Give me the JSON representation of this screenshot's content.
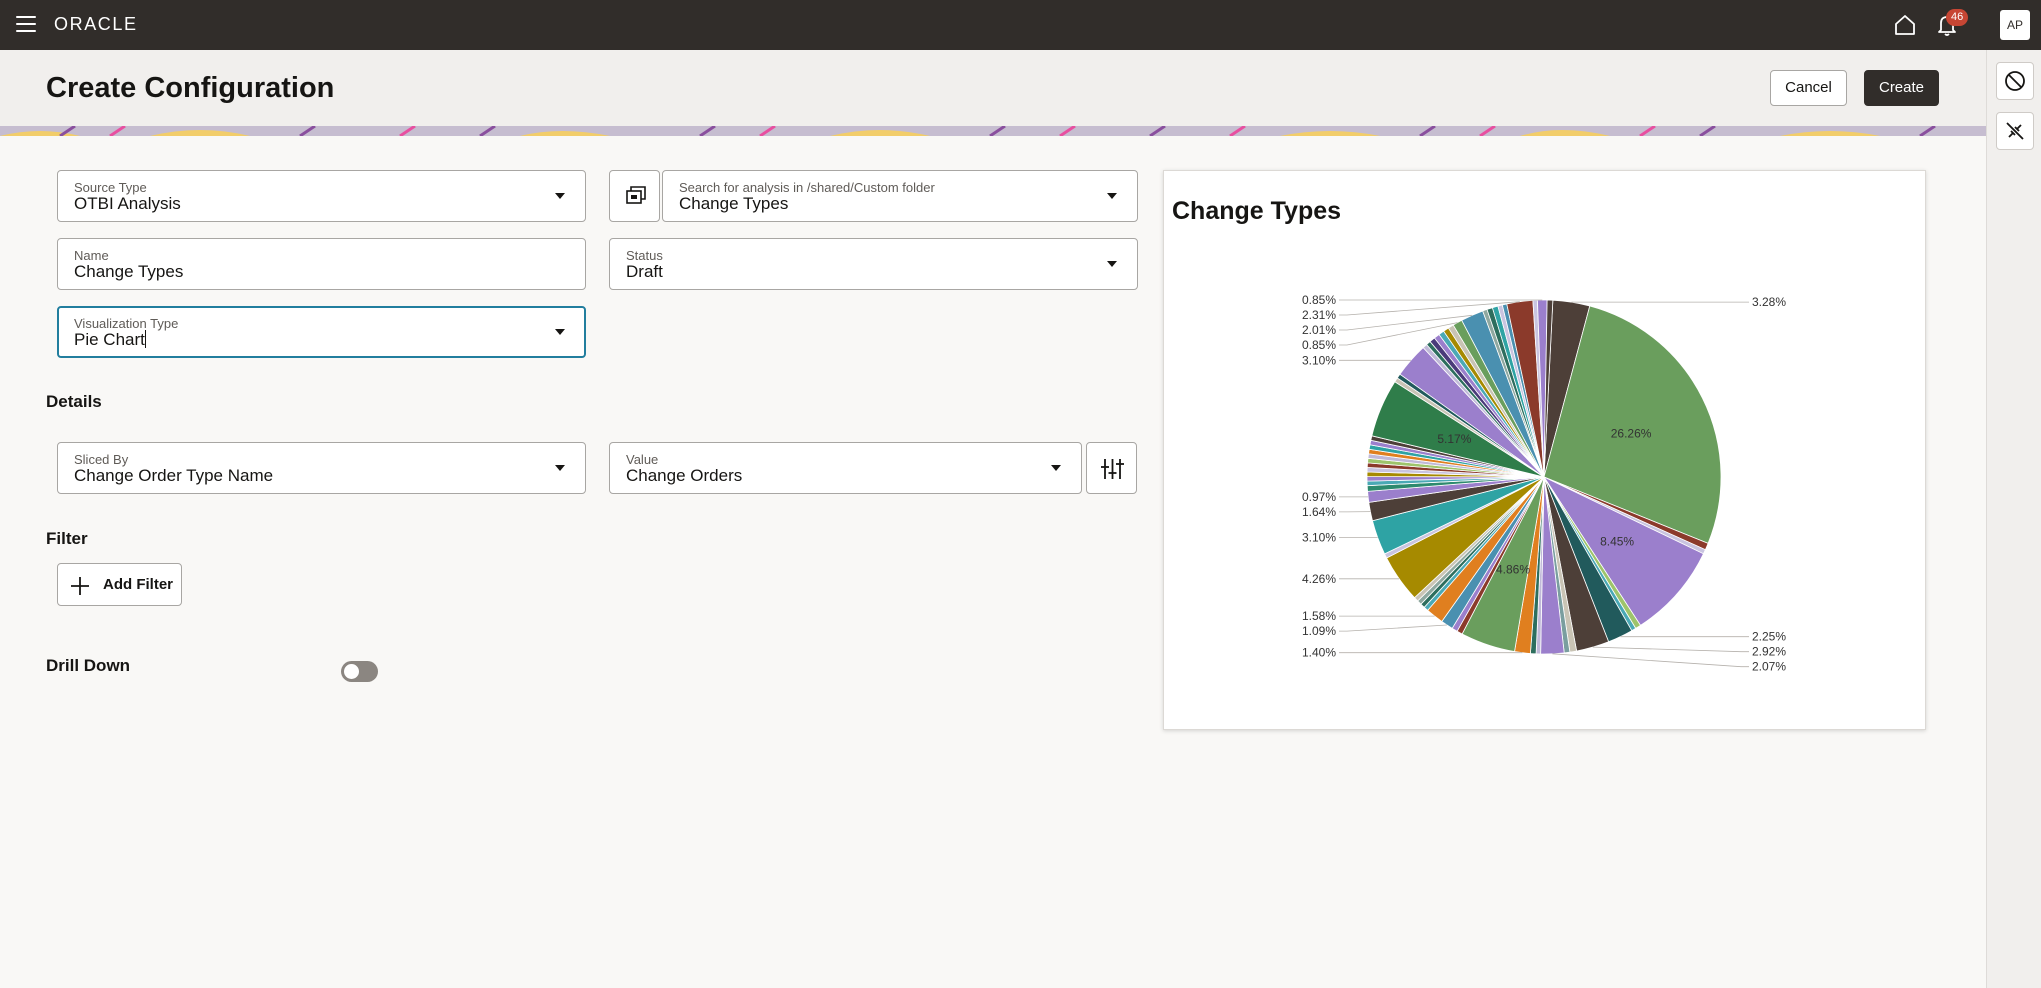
{
  "topbar": {
    "logo": "ORACLE",
    "notification_count": "46",
    "avatar_initials": "AP"
  },
  "header": {
    "title": "Create Configuration",
    "cancel_label": "Cancel",
    "create_label": "Create"
  },
  "form": {
    "source_type": {
      "label": "Source Type",
      "value": "OTBI Analysis"
    },
    "analysis": {
      "label": "Search for analysis in /shared/Custom folder",
      "value": "Change Types"
    },
    "name": {
      "label": "Name",
      "value": "Change Types"
    },
    "status": {
      "label": "Status",
      "value": "Draft"
    },
    "visualization_type": {
      "label": "Visualization Type",
      "value": "Pie Chart"
    }
  },
  "details": {
    "title": "Details",
    "sliced_by": {
      "label": "Sliced By",
      "value": "Change Order Type Name"
    },
    "value": {
      "label": "Value",
      "value": "Change Orders"
    }
  },
  "filter": {
    "title": "Filter",
    "add_filter_label": "Add Filter"
  },
  "drill_down": {
    "title": "Drill Down",
    "enabled": false
  },
  "colors": {
    "topbar": "#312d2a",
    "accent": "#227e9e",
    "badge": "#c74634"
  },
  "chart_data": {
    "type": "pie",
    "title": "Change Types",
    "slices": [
      {
        "value": 3.28,
        "label": "3.28%",
        "color": "#4d3f38"
      },
      {
        "value": 26.26,
        "label": "26.26%",
        "color": "#6a9e5d"
      },
      {
        "value": 0.6,
        "color": "#8b3a2b"
      },
      {
        "value": 0.4,
        "color": "#c9c4e0"
      },
      {
        "value": 8.45,
        "label": "8.45%",
        "color": "#9b7fcc"
      },
      {
        "value": 0.5,
        "color": "#9ec46b"
      },
      {
        "value": 0.4,
        "color": "#4aa9b5"
      },
      {
        "value": 2.25,
        "label": "2.25%",
        "color": "#215a5c"
      },
      {
        "value": 2.92,
        "label": "2.92%",
        "color": "#4d3f38"
      },
      {
        "value": 0.6,
        "color": "#c9c4b5"
      },
      {
        "value": 0.5,
        "color": "#7a9e9f"
      },
      {
        "value": 2.07,
        "label": "2.07%",
        "color": "#9b7fcc"
      },
      {
        "value": 0.4,
        "color": "#c0b9d8"
      },
      {
        "value": 0.5,
        "color": "#2d6e5e"
      },
      {
        "value": 1.4,
        "label": "1.40%",
        "color": "#e07f1f"
      },
      {
        "value": 4.86,
        "label": "4.86%",
        "color": "#6a9e5d"
      },
      {
        "value": 0.5,
        "color": "#8b3a2b"
      },
      {
        "value": 0.5,
        "color": "#9b7fcc"
      },
      {
        "value": 1.09,
        "label": "1.09%",
        "color": "#4a90b0"
      },
      {
        "value": 1.58,
        "label": "1.58%",
        "color": "#e07f1f"
      },
      {
        "value": 0.4,
        "color": "#4aa9b5"
      },
      {
        "value": 0.4,
        "color": "#2d6e5e"
      },
      {
        "value": 0.4,
        "color": "#8fa8a0"
      },
      {
        "value": 0.4,
        "color": "#c9c4b5"
      },
      {
        "value": 4.26,
        "label": "4.26%",
        "color": "#a68a00"
      },
      {
        "value": 0.4,
        "color": "#c9c4e0"
      },
      {
        "value": 3.1,
        "label": "3.10%",
        "color": "#2ea3a4"
      },
      {
        "value": 1.64,
        "label": "1.64%",
        "color": "#4d3f38"
      },
      {
        "value": 0.97,
        "label": "0.97%",
        "color": "#9b7fcc"
      },
      {
        "value": 0.5,
        "color": "#2d8a6e"
      },
      {
        "value": 0.4,
        "color": "#4aa9b5"
      },
      {
        "value": 0.4,
        "color": "#9b7fcc"
      },
      {
        "value": 0.4,
        "color": "#a68a00"
      },
      {
        "value": 0.4,
        "color": "#c9c4e0"
      },
      {
        "value": 0.4,
        "color": "#8b3a2b"
      },
      {
        "value": 0.4,
        "color": "#9ec46b"
      },
      {
        "value": 0.4,
        "color": "#c0b9d8"
      },
      {
        "value": 0.4,
        "color": "#e07f1f"
      },
      {
        "value": 0.4,
        "color": "#2ea3a4"
      },
      {
        "value": 0.4,
        "color": "#9b7fcc"
      },
      {
        "value": 0.4,
        "color": "#4d3f38"
      },
      {
        "value": 5.17,
        "label": "5.17%",
        "color": "#2f7d4a"
      },
      {
        "value": 0.4,
        "color": "#c9c4b5"
      },
      {
        "value": 0.4,
        "color": "#215a5c"
      },
      {
        "value": 3.1,
        "label": "3.10%",
        "color": "#9b7fcc"
      },
      {
        "value": 0.4,
        "color": "#c0b9d8"
      },
      {
        "value": 0.4,
        "color": "#2d6e5e"
      },
      {
        "value": 0.5,
        "color": "#4a3a7a"
      },
      {
        "value": 0.5,
        "color": "#9b7fcc"
      },
      {
        "value": 0.5,
        "color": "#4aa9b5"
      },
      {
        "value": 0.5,
        "color": "#a68a00"
      },
      {
        "value": 0.5,
        "color": "#c9c4b5"
      },
      {
        "value": 0.85,
        "label": "0.85%",
        "color": "#6a9e5d"
      },
      {
        "value": 2.01,
        "label": "2.01%",
        "color": "#4a90b0"
      },
      {
        "value": 0.4,
        "color": "#8fa8a0"
      },
      {
        "value": 0.5,
        "color": "#2d6e5e"
      },
      {
        "value": 0.5,
        "color": "#2ea3a4"
      },
      {
        "value": 0.4,
        "color": "#c9c4e0"
      },
      {
        "value": 0.4,
        "color": "#4a90b0"
      },
      {
        "value": 2.31,
        "label": "2.31%",
        "color": "#8b3a2b"
      },
      {
        "value": 0.4,
        "color": "#c9c4e0"
      },
      {
        "value": 0.85,
        "label": "0.85%",
        "color": "#9b7fcc"
      },
      {
        "value": 0.5,
        "color": "#4d3f38"
      }
    ]
  }
}
